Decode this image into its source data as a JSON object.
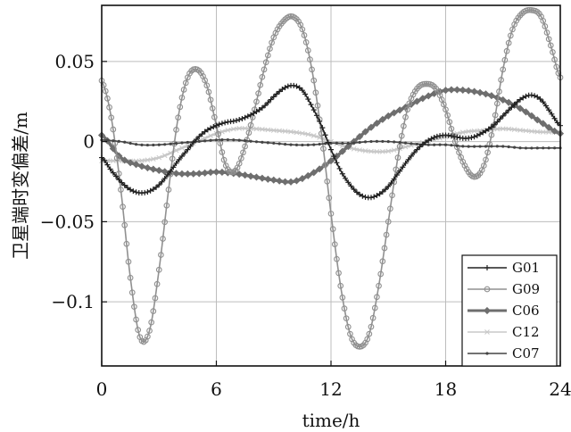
{
  "chart_data": {
    "type": "line",
    "title": "",
    "xlabel": "time/h",
    "ylabel": "卫星端时变偏差/m",
    "xlim": [
      0,
      24
    ],
    "ylim": [
      -0.14,
      0.085
    ],
    "xticks": [
      0,
      6,
      12,
      18,
      24
    ],
    "yticks": [
      0.05,
      0,
      -0.05,
      -0.1
    ],
    "xtick_labels": [
      "0",
      "6",
      "12",
      "18",
      "24"
    ],
    "ytick_labels": [
      "0.05",
      "0",
      "−0.05",
      "−0.1"
    ],
    "grid": true,
    "legend_position": "bottom-right",
    "series": [
      {
        "name": "G01",
        "color": "#222222",
        "marker": "plus",
        "x": [
          0,
          0.5,
          1,
          1.5,
          2,
          2.5,
          3,
          3.5,
          4,
          4.5,
          5,
          5.5,
          6,
          6.5,
          7,
          7.5,
          8,
          8.5,
          9,
          9.5,
          10,
          10.5,
          11,
          11.5,
          12,
          12.5,
          13,
          13.5,
          14,
          14.5,
          15,
          15.5,
          16,
          16.5,
          17,
          17.5,
          18,
          18.5,
          19,
          19.5,
          20,
          20.5,
          21,
          21.5,
          22,
          22.5,
          23,
          23.5,
          24
        ],
        "y": [
          -0.01,
          -0.018,
          -0.025,
          -0.03,
          -0.032,
          -0.031,
          -0.027,
          -0.02,
          -0.012,
          -0.005,
          0.002,
          0.007,
          0.01,
          0.012,
          0.013,
          0.015,
          0.018,
          0.022,
          0.028,
          0.033,
          0.035,
          0.032,
          0.022,
          0.01,
          -0.005,
          -0.018,
          -0.027,
          -0.033,
          -0.035,
          -0.033,
          -0.028,
          -0.02,
          -0.012,
          -0.005,
          0.0,
          0.003,
          0.004,
          0.003,
          0.002,
          0.003,
          0.006,
          0.01,
          0.016,
          0.022,
          0.027,
          0.029,
          0.026,
          0.018,
          0.01
        ]
      },
      {
        "name": "G09",
        "color": "#909090",
        "marker": "circle",
        "x": [
          0,
          0.5,
          1,
          1.5,
          2,
          2.5,
          3,
          3.5,
          4,
          4.5,
          5,
          5.5,
          6,
          6.5,
          7,
          7.5,
          8,
          8.5,
          9,
          9.5,
          10,
          10.5,
          11,
          11.5,
          12,
          12.5,
          13,
          13.5,
          14,
          14.5,
          15,
          15.5,
          16,
          16.5,
          17,
          17.5,
          18,
          18.5,
          19,
          19.5,
          20,
          20.5,
          21,
          21.5,
          22,
          22.5,
          23,
          23.5,
          24
        ],
        "y": [
          0.038,
          0.015,
          -0.03,
          -0.085,
          -0.122,
          -0.118,
          -0.08,
          -0.03,
          0.015,
          0.04,
          0.045,
          0.035,
          0.01,
          -0.015,
          -0.018,
          -0.003,
          0.02,
          0.045,
          0.065,
          0.075,
          0.078,
          0.07,
          0.045,
          0.005,
          -0.045,
          -0.09,
          -0.12,
          -0.128,
          -0.12,
          -0.09,
          -0.05,
          -0.01,
          0.02,
          0.033,
          0.036,
          0.033,
          0.02,
          0.0,
          -0.015,
          -0.022,
          -0.015,
          0.01,
          0.045,
          0.07,
          0.08,
          0.082,
          0.078,
          0.06,
          0.04
        ]
      },
      {
        "name": "C06",
        "color": "#6e6e6e",
        "marker": "diamond",
        "x": [
          0,
          1,
          2,
          3,
          4,
          5,
          6,
          7,
          8,
          9,
          10,
          11,
          12,
          13,
          14,
          15,
          16,
          17,
          18,
          19,
          20,
          21,
          22,
          23,
          24
        ],
        "y": [
          0.004,
          -0.01,
          -0.015,
          -0.018,
          -0.02,
          -0.02,
          -0.019,
          -0.02,
          -0.022,
          -0.024,
          -0.025,
          -0.02,
          -0.012,
          -0.002,
          0.008,
          0.016,
          0.022,
          0.028,
          0.032,
          0.032,
          0.03,
          0.026,
          0.02,
          0.012,
          0.005
        ]
      },
      {
        "name": "C12",
        "color": "#c8c8c8",
        "marker": "cross",
        "x": [
          0,
          1,
          2,
          3,
          4,
          5,
          6,
          7,
          8,
          9,
          10,
          11,
          12,
          13,
          14,
          15,
          16,
          17,
          18,
          19,
          20,
          21,
          22,
          23,
          24
        ],
        "y": [
          -0.012,
          -0.012,
          -0.012,
          -0.01,
          -0.005,
          0.0,
          0.005,
          0.008,
          0.008,
          0.007,
          0.006,
          0.004,
          0.0,
          -0.004,
          -0.006,
          -0.006,
          -0.003,
          0.0,
          0.003,
          0.006,
          0.007,
          0.008,
          0.007,
          0.006,
          0.006
        ]
      },
      {
        "name": "C07",
        "color": "#444444",
        "marker": "dot",
        "x": [
          0,
          1,
          2,
          3,
          4,
          5,
          6,
          7,
          8,
          9,
          10,
          11,
          12,
          13,
          14,
          15,
          16,
          17,
          18,
          19,
          20,
          21,
          22,
          23,
          24
        ],
        "y": [
          0.001,
          0.0,
          -0.002,
          -0.002,
          -0.001,
          0.0,
          0.001,
          0.001,
          0.0,
          -0.001,
          -0.002,
          -0.002,
          -0.001,
          -0.001,
          0.0,
          0.0,
          -0.001,
          -0.002,
          -0.002,
          -0.003,
          -0.003,
          -0.003,
          -0.004,
          -0.004,
          -0.004
        ]
      }
    ]
  }
}
